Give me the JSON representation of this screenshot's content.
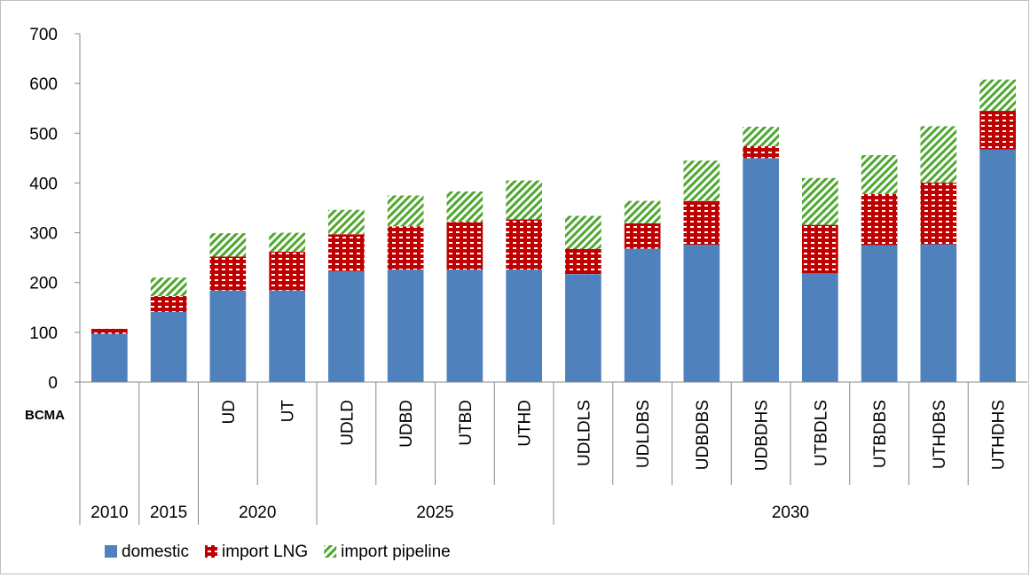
{
  "chart_data": {
    "type": "bar",
    "stacked": true,
    "unit_label": "BCMA",
    "categories": [
      "",
      "",
      "UD",
      "UT",
      "UDLD",
      "UDBD",
      "UTBD",
      "UTHD",
      "UDLDLS",
      "UDLDBS",
      "UDBDBS",
      "UDBDHS",
      "UTBDLS",
      "UTBDBS",
      "UTHDBS",
      "UTHDHS"
    ],
    "groups": [
      {
        "label": "2010",
        "count": 1
      },
      {
        "label": "2015",
        "count": 1
      },
      {
        "label": "2020",
        "count": 2
      },
      {
        "label": "2025",
        "count": 4
      },
      {
        "label": "2030",
        "count": 8
      }
    ],
    "series": [
      {
        "name": "domestic",
        "color": "#4f81bd",
        "values": [
          97,
          141,
          184,
          184,
          223,
          226,
          226,
          226,
          217,
          268,
          276,
          450,
          219,
          275,
          277,
          467
        ]
      },
      {
        "name": "import LNG",
        "color": "#c00000",
        "values": [
          10,
          32,
          68,
          78,
          74,
          87,
          96,
          101,
          51,
          51,
          88,
          24,
          97,
          103,
          124,
          78
        ]
      },
      {
        "name": "import pipeline",
        "color": "#4ea72e",
        "values": [
          0,
          37,
          47,
          38,
          49,
          62,
          61,
          78,
          66,
          45,
          81,
          39,
          94,
          78,
          113,
          63
        ]
      }
    ],
    "yticks": [
      0,
      100,
      200,
      300,
      400,
      500,
      600,
      700
    ],
    "ylim": [
      0,
      700
    ],
    "grid": false,
    "legend_position": "bottom-left"
  }
}
